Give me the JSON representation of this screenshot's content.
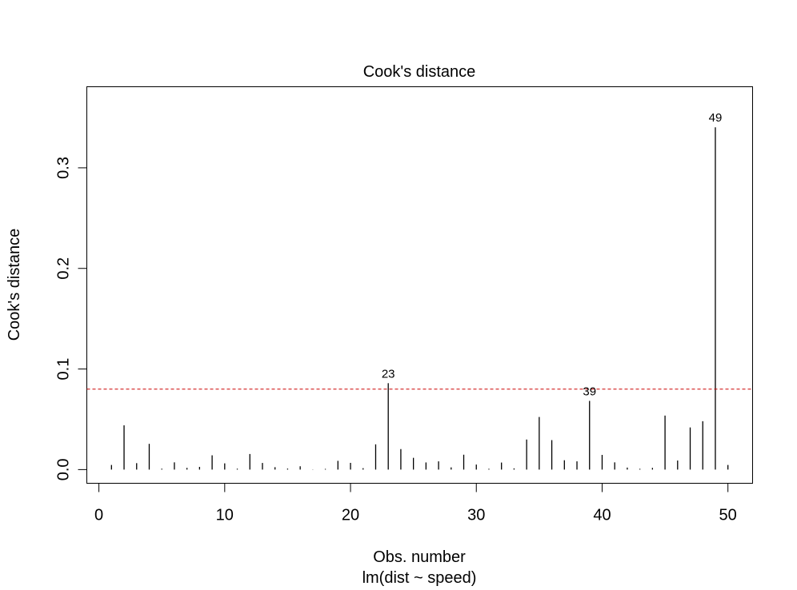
{
  "chart_data": {
    "type": "bar",
    "title": "Cook's distance",
    "xlabel": "Obs. number",
    "subtitle": "lm(dist ~ speed)",
    "ylabel": "Cook's distance",
    "xlim": [
      -0.96,
      51.96
    ],
    "ylim": [
      -0.0136,
      0.3806
    ],
    "xticks": [
      0,
      10,
      20,
      30,
      40,
      50
    ],
    "yticks": [
      0.0,
      0.1,
      0.2,
      0.3
    ],
    "xtick_labels": [
      "0",
      "10",
      "20",
      "30",
      "40",
      "50"
    ],
    "ytick_labels": [
      "0.0",
      "0.1",
      "0.2",
      "0.3"
    ],
    "x": [
      1,
      2,
      3,
      4,
      5,
      6,
      7,
      8,
      9,
      10,
      11,
      12,
      13,
      14,
      15,
      16,
      17,
      18,
      19,
      20,
      21,
      22,
      23,
      24,
      25,
      26,
      27,
      28,
      29,
      30,
      31,
      32,
      33,
      34,
      35,
      36,
      37,
      38,
      39,
      40,
      41,
      42,
      43,
      44,
      45,
      46,
      47,
      48,
      49,
      50
    ],
    "values": [
      0.0046,
      0.044,
      0.0064,
      0.0256,
      0.0009,
      0.0072,
      0.0017,
      0.0027,
      0.0142,
      0.0062,
      0.0009,
      0.0155,
      0.0066,
      0.0024,
      0.001,
      0.0033,
      0.0002,
      0.0007,
      0.0087,
      0.0067,
      0.0014,
      0.0251,
      0.0859,
      0.0204,
      0.0117,
      0.0071,
      0.0082,
      0.0022,
      0.0148,
      0.005,
      0.0008,
      0.007,
      0.0012,
      0.0299,
      0.0523,
      0.0293,
      0.0093,
      0.0082,
      0.0683,
      0.0146,
      0.0072,
      0.002,
      0.0008,
      0.0017,
      0.0537,
      0.009,
      0.0419,
      0.0481,
      0.3403,
      0.0046
    ],
    "reference_line": {
      "y": 0.08,
      "style": "dashed",
      "color": "#cc0000"
    },
    "point_labels": [
      {
        "x": 23,
        "label": "23"
      },
      {
        "x": 39,
        "label": "39"
      },
      {
        "x": 49,
        "label": "49"
      }
    ],
    "grid": false,
    "colors": {
      "bars": "#000000",
      "reference_line": "#cc0000"
    }
  }
}
